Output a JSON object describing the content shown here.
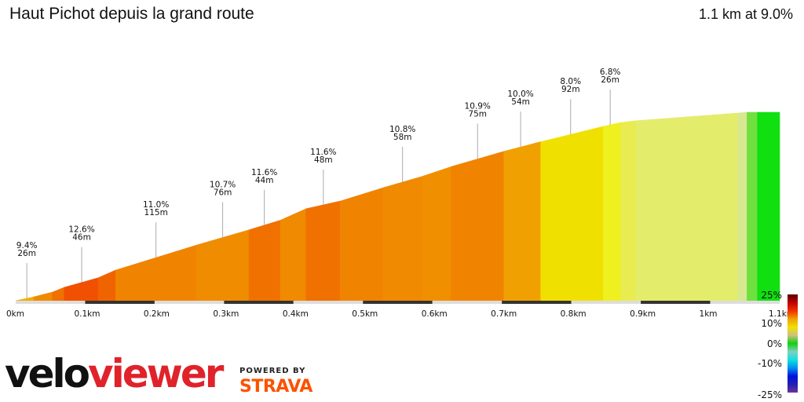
{
  "header": {
    "title": "Haut Pichot depuis la grand route",
    "summary": "1.1 km at 9.0%"
  },
  "chart_data": {
    "type": "area",
    "xlim": [
      0,
      1.1
    ],
    "x_ticks": [
      "0km",
      "0.1km",
      "0.2km",
      "0.3km",
      "0.4km",
      "0.5km",
      "0.6km",
      "0.7km",
      "0.8km",
      "0.9km",
      "1km",
      "1.1km"
    ],
    "profile": [
      [
        0,
        0
      ],
      [
        0.026,
        2
      ],
      [
        0.053,
        4.5
      ],
      [
        0.07,
        7
      ],
      [
        0.119,
        12
      ],
      [
        0.144,
        16
      ],
      [
        0.26,
        29
      ],
      [
        0.336,
        37
      ],
      [
        0.381,
        42
      ],
      [
        0.418,
        48
      ],
      [
        0.467,
        52
      ],
      [
        0.529,
        59
      ],
      [
        0.586,
        65
      ],
      [
        0.627,
        70
      ],
      [
        0.703,
        78
      ],
      [
        0.756,
        83
      ],
      [
        0.846,
        91
      ],
      [
        0.871,
        93
      ],
      [
        0.893,
        94
      ],
      [
        1.04,
        98
      ],
      [
        1.053,
        98.4
      ],
      [
        1.068,
        98.4
      ],
      [
        1.1,
        98.4
      ]
    ],
    "segment_colors": [
      "#f0b000",
      "#f08a00",
      "#f07000",
      "#f05000",
      "#f06400",
      "#f08400",
      "#f08c00",
      "#f07000",
      "#f08a00",
      "#f07000",
      "#f08400",
      "#f08a00",
      "#f09000",
      "#f08400",
      "#f0a000",
      "#f0e000",
      "#eef020",
      "#e8ec50",
      "#e4ec6c",
      "#d8e890",
      "#70e040",
      "#10e010"
    ],
    "annotations": [
      {
        "km": 0.016,
        "grade": "9.4%",
        "length": "26m"
      },
      {
        "km": 0.095,
        "grade": "12.6%",
        "length": "46m"
      },
      {
        "km": 0.202,
        "grade": "11.0%",
        "length": "115m"
      },
      {
        "km": 0.298,
        "grade": "10.7%",
        "length": "76m"
      },
      {
        "km": 0.358,
        "grade": "11.6%",
        "length": "44m"
      },
      {
        "km": 0.443,
        "grade": "11.6%",
        "length": "48m"
      },
      {
        "km": 0.557,
        "grade": "10.8%",
        "length": "58m"
      },
      {
        "km": 0.665,
        "grade": "10.9%",
        "length": "75m"
      },
      {
        "km": 0.727,
        "grade": "10.0%",
        "length": "54m"
      },
      {
        "km": 0.799,
        "grade": "8.0%",
        "length": "92m"
      },
      {
        "km": 0.856,
        "grade": "6.8%",
        "length": "26m"
      }
    ],
    "legend": {
      "labels": [
        "25%",
        "10%",
        "0%",
        "-10%",
        "-25%"
      ],
      "gradient": [
        "#5a0000",
        "#c00000",
        "#f03000",
        "#f0a000",
        "#f0e000",
        "#d0c080",
        "#10d010",
        "#80d0c0",
        "#10e0e0",
        "#0090f0",
        "#0010e0",
        "#2020b0",
        "#7030a0"
      ]
    }
  },
  "branding": {
    "logo_part1": "velo",
    "logo_part2": "viewer",
    "powered_by": "POWERED BY",
    "strava": "STRAVA"
  }
}
